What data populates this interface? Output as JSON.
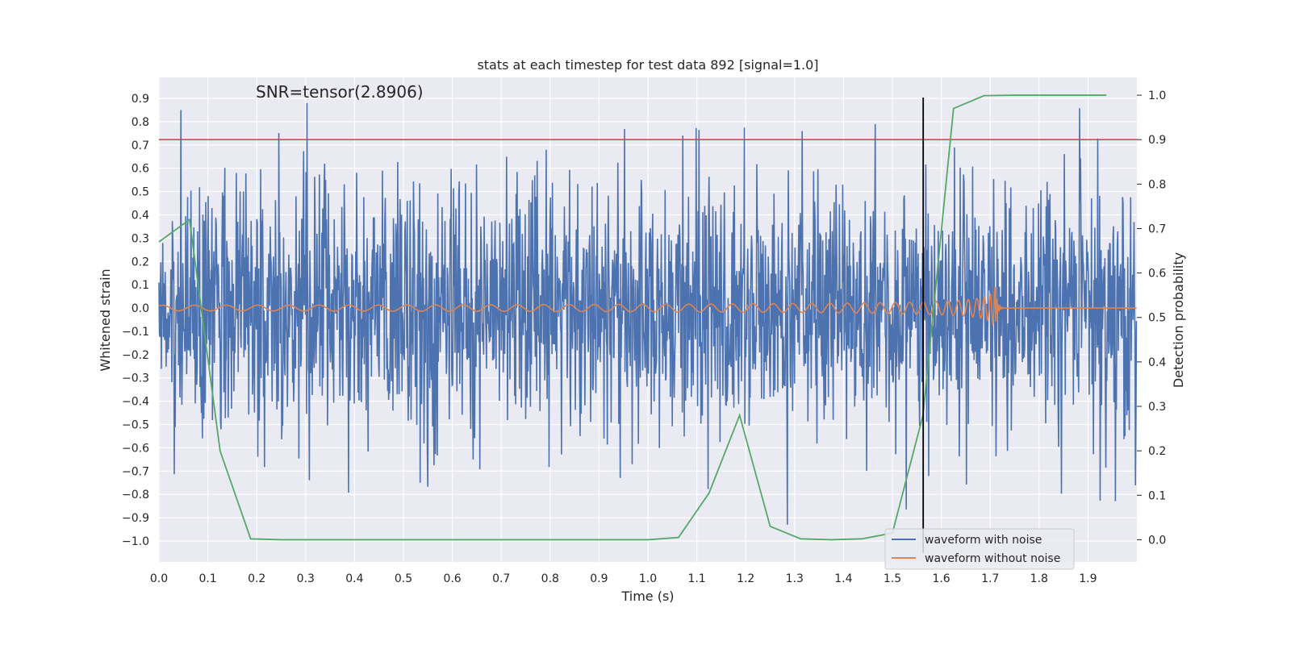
{
  "chart_data": {
    "type": "line",
    "title": "stats at each timestep for test data 892 [signal=1.0]",
    "xlabel": "Time (s)",
    "ylabel": "Whitened strain",
    "y2label": "Detection probability",
    "annotation": "SNR=tensor(2.8906)",
    "xlim": [
      0.0,
      2.0
    ],
    "ylim": [
      -1.09,
      0.99
    ],
    "y2lim": [
      -0.05,
      1.04
    ],
    "grid": true,
    "legend_position": "lower-right",
    "x_ticks": [
      "0.0",
      "0.1",
      "0.2",
      "0.3",
      "0.4",
      "0.5",
      "0.6",
      "0.7",
      "0.8",
      "0.9",
      "1.0",
      "1.1",
      "1.2",
      "1.3",
      "1.4",
      "1.5",
      "1.6",
      "1.7",
      "1.8",
      "1.9"
    ],
    "y_ticks": [
      "0.9",
      "0.8",
      "0.7",
      "0.6",
      "0.5",
      "0.4",
      "0.3",
      "0.2",
      "0.1",
      "0.0",
      "−0.1",
      "−0.2",
      "−0.3",
      "−0.4",
      "−0.5",
      "−0.6",
      "−0.7",
      "−0.8",
      "−0.9",
      "−1.0"
    ],
    "y2_ticks": [
      "1.0",
      "0.9",
      "0.8",
      "0.7",
      "0.6",
      "0.5",
      "0.4",
      "0.3",
      "0.2",
      "0.1",
      "0.0"
    ],
    "threshold": {
      "axis": "y2",
      "value": 0.9,
      "color": "#c44e52"
    },
    "marker_time": {
      "x": 1.563,
      "color": "#000000"
    },
    "colors": {
      "noise": "#4c72b0",
      "clean": "#dd8452",
      "prob": "#55a868",
      "background": "#eaeaf2",
      "grid": "#ffffff"
    },
    "series": [
      {
        "name": "waveform with noise",
        "axis": "y",
        "kind": "noise",
        "x_range": [
          0.0,
          1.999
        ],
        "y_range_approx": [
          -0.93,
          0.88
        ],
        "peaks": [
          {
            "x": 0.045,
            "y": 0.85
          },
          {
            "x": 0.303,
            "y": 0.88
          },
          {
            "x": 1.285,
            "y": -0.93
          },
          {
            "x": 1.465,
            "y": 0.79
          },
          {
            "x": 1.315,
            "y": 0.76
          }
        ]
      },
      {
        "name": "waveform without noise",
        "axis": "y",
        "kind": "chirp",
        "x_range": [
          0.0,
          1.999
        ],
        "merger_time": 1.71,
        "amplitude_start": 0.012,
        "amplitude_peak": 0.09
      },
      {
        "name": "",
        "axis": "y2",
        "x": [
          0.0,
          0.0625,
          0.125,
          0.1875,
          0.25,
          0.3125,
          0.375,
          0.4375,
          0.5,
          0.5625,
          0.625,
          0.6875,
          0.75,
          0.8125,
          0.875,
          0.9375,
          1.0,
          1.0625,
          1.125,
          1.1875,
          1.25,
          1.3125,
          1.375,
          1.4375,
          1.5,
          1.5625,
          1.625,
          1.6875,
          1.75,
          1.8125,
          1.875,
          1.9375
        ],
        "y": [
          0.67,
          0.72,
          0.2,
          0.002,
          0.0,
          0.0,
          0.0,
          0.0,
          0.0,
          0.0,
          0.0,
          0.0,
          0.0,
          0.0,
          0.0,
          0.0,
          0.0,
          0.005,
          0.105,
          0.28,
          0.03,
          0.002,
          0.0,
          0.002,
          0.015,
          0.28,
          0.97,
          0.999,
          1.0,
          1.0,
          1.0,
          1.0
        ]
      }
    ]
  }
}
